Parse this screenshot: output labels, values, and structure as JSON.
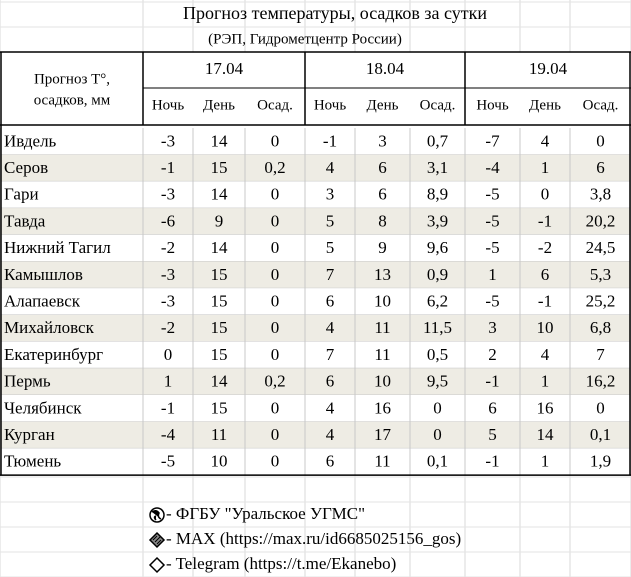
{
  "title": "Прогноз температуры, осадков за сутки",
  "subtitle": "(РЭП, Гидрометцентр России)",
  "header": {
    "label": [
      "Прогноз T°,",
      "осадков, мм"
    ],
    "dates": [
      "17.04",
      "18.04",
      "19.04"
    ],
    "subheaders": [
      "Ночь",
      "День",
      "Осад."
    ]
  },
  "table": {
    "rows": [
      [
        "Ивдель",
        "-3",
        "14",
        "0",
        "-1",
        "3",
        "0,7",
        "-7",
        "4",
        "0"
      ],
      [
        "Серов",
        "-1",
        "15",
        "0,2",
        "4",
        "6",
        "3,1",
        "-4",
        "1",
        "6"
      ],
      [
        "Гари",
        "-3",
        "14",
        "0",
        "3",
        "6",
        "8,9",
        "-5",
        "0",
        "3,8"
      ],
      [
        "Тавда",
        "-6",
        "9",
        "0",
        "5",
        "8",
        "3,9",
        "-5",
        "-1",
        "20,2"
      ],
      [
        "Нижний Тагил",
        "-2",
        "14",
        "0",
        "5",
        "9",
        "9,6",
        "-5",
        "-2",
        "24,5"
      ],
      [
        "Камышлов",
        "-3",
        "15",
        "0",
        "7",
        "13",
        "0,9",
        "1",
        "6",
        "5,3"
      ],
      [
        "Алапаевск",
        "-3",
        "15",
        "0",
        "6",
        "10",
        "6,2",
        "-5",
        "-1",
        "25,2"
      ],
      [
        "Михайловск",
        "-2",
        "15",
        "0",
        "4",
        "11",
        "11,5",
        "3",
        "10",
        "6,8"
      ],
      [
        "Екатеринбург",
        "0",
        "15",
        "0",
        "7",
        "11",
        "0,5",
        "2",
        "4",
        "7"
      ],
      [
        "Пермь",
        "1",
        "14",
        "0,2",
        "6",
        "10",
        "9,5",
        "-1",
        "1",
        "16,2"
      ],
      [
        "Челябинск",
        "-1",
        "15",
        "0",
        "4",
        "16",
        "0",
        "6",
        "16",
        "0"
      ],
      [
        "Курган",
        "-4",
        "11",
        "0",
        "4",
        "17",
        "0",
        "5",
        "14",
        "0,1"
      ],
      [
        "Тюмень",
        "-5",
        "10",
        "0",
        "6",
        "11",
        "0,1",
        "-1",
        "1",
        "1,9"
      ]
    ]
  },
  "footer": [
    " - ФГБУ \"Уральское УГМС\"",
    " - MAX (https://max.ru/id6685025156_gos)",
    " - Telegram (https://t.me/Ekanebo)"
  ]
}
